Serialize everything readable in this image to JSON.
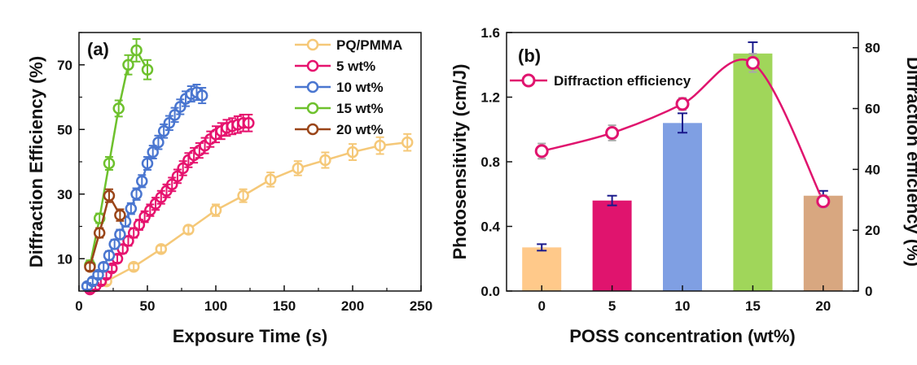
{
  "chart_data": [
    {
      "panel_label": "(a)",
      "type": "line",
      "xlabel": "Exposure Time (s)",
      "ylabel": "Diffraction Efficiency (%)",
      "xlim": [
        0,
        250
      ],
      "ylim": [
        0,
        80
      ],
      "xticks": [
        0,
        50,
        100,
        150,
        200,
        250
      ],
      "yticks": [
        10,
        30,
        50,
        70
      ],
      "legend_position": "top-right",
      "series": [
        {
          "name": "PQ/PMMA",
          "color": "#f5c878",
          "x": [
            20,
            40,
            60,
            80,
            100,
            120,
            140,
            160,
            180,
            200,
            220,
            240
          ],
          "y": [
            3,
            7.5,
            13,
            19,
            25,
            29.5,
            34.5,
            38,
            40.5,
            43,
            45,
            46
          ],
          "err": [
            1,
            1,
            1,
            1.2,
            1.8,
            2,
            2.2,
            2.2,
            2.4,
            2.5,
            2.6,
            2.6
          ]
        },
        {
          "name": "5 wt%",
          "color": "#e6136e",
          "x": [
            8,
            12,
            16,
            20,
            24,
            28,
            32,
            36,
            40,
            44,
            48,
            52,
            56,
            60,
            64,
            68,
            72,
            76,
            80,
            84,
            88,
            92,
            96,
            100,
            104,
            108,
            112,
            116,
            120,
            124
          ],
          "y": [
            0.5,
            1.5,
            3,
            5,
            7,
            10,
            13,
            15.5,
            18,
            20.5,
            23,
            25,
            27,
            29,
            31,
            33,
            35.5,
            38,
            40.5,
            42,
            43.5,
            45,
            47,
            48.5,
            49.5,
            50.5,
            51,
            51.5,
            52,
            52
          ],
          "err": [
            1,
            1,
            1,
            1,
            1,
            1.2,
            1.3,
            1.5,
            1.5,
            1.6,
            1.7,
            1.8,
            1.9,
            2,
            2,
            2.1,
            2.1,
            2.2,
            2.2,
            2.3,
            2.3,
            2.4,
            2.4,
            2.5,
            2.5,
            2.5,
            2.5,
            2.6,
            2.6,
            2.6
          ]
        },
        {
          "name": "10 wt%",
          "color": "#4a76d0",
          "x": [
            6,
            10,
            14,
            18,
            22,
            26,
            30,
            34,
            38,
            42,
            46,
            50,
            54,
            58,
            62,
            66,
            70,
            74,
            78,
            82,
            86,
            90
          ],
          "y": [
            1.5,
            3,
            5,
            7.5,
            11,
            14.5,
            17.5,
            21.5,
            25.5,
            30,
            34,
            39.5,
            43,
            46,
            49.5,
            52,
            54.5,
            57,
            59.5,
            61,
            61.5,
            60.5
          ],
          "err": [
            1,
            1,
            1,
            1.2,
            1.3,
            1.4,
            1.5,
            1.6,
            1.7,
            1.8,
            1.9,
            2,
            2,
            2.1,
            2.1,
            2.2,
            2.2,
            2.3,
            2.3,
            2.4,
            2.4,
            2.4
          ]
        },
        {
          "name": "15 wt%",
          "color": "#6ec12d",
          "x": [
            8,
            15,
            22,
            29,
            36,
            42,
            50
          ],
          "y": [
            8,
            22.5,
            39.5,
            56.5,
            70,
            74.5,
            68.5
          ],
          "err": [
            1.5,
            1.5,
            2,
            2.5,
            3,
            3.5,
            3
          ]
        },
        {
          "name": "20 wt%",
          "color": "#9a4518",
          "x": [
            8,
            15,
            22,
            30
          ],
          "y": [
            7.5,
            18,
            29.5,
            23.5
          ],
          "err": [
            1.2,
            1.5,
            2,
            1.8
          ]
        }
      ]
    },
    {
      "panel_label": "(b)",
      "type": "bar",
      "xlabel": "POSS  concentration (wt%)",
      "ylabel": "Photosensitivity (cm/J)",
      "y2label": "Diffraction efficiency (%)",
      "categories": [
        "0",
        "5",
        "10",
        "15",
        "20"
      ],
      "values": [
        0.27,
        0.56,
        1.04,
        1.47,
        0.59
      ],
      "errors": [
        0.02,
        0.03,
        0.06,
        0.07,
        0.03
      ],
      "bar_colors": [
        "#ffc98a",
        "#e0146e",
        "#7f9fe3",
        "#a0d65a",
        "#d8a780"
      ],
      "ylim": [
        0,
        1.6
      ],
      "yticks": [
        "0.0",
        "0.4",
        "0.8",
        "1.2",
        "1.6"
      ],
      "y2lim": [
        0,
        85
      ],
      "y2ticks": [
        0,
        20,
        40,
        60,
        80
      ],
      "line_series": {
        "name": "Diffraction efficiency",
        "color": "#e0146e",
        "values": [
          46,
          52,
          61.5,
          75,
          29.5
        ],
        "errors": [
          2.5,
          2.5,
          2,
          3,
          2
        ]
      },
      "legend_position": "top-left"
    }
  ]
}
